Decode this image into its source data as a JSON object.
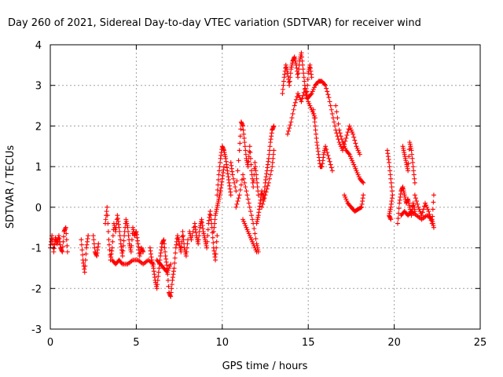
{
  "chart_data": {
    "type": "scatter",
    "title": "Day 260 of 2021, Sidereal Day-to-day VTEC variation (SDTVAR) for receiver wind",
    "xlabel": "GPS time / hours",
    "ylabel": "SDTVAR / TECUs",
    "xlim": [
      0,
      25
    ],
    "ylim": [
      -3,
      4
    ],
    "xticks": [
      0,
      5,
      10,
      15,
      20,
      25
    ],
    "yticks": [
      -3,
      -2,
      -1,
      0,
      1,
      2,
      3,
      4
    ],
    "grid": true,
    "marker": "+",
    "color": "#ff0000",
    "series": [
      {
        "name": "SDTVAR",
        "tracks": [
          [
            [
              0.0,
              -1.0
            ],
            [
              0.1,
              -0.7
            ],
            [
              0.2,
              -1.1
            ],
            [
              0.3,
              -0.75
            ],
            [
              0.4,
              -0.9
            ],
            [
              0.5,
              -0.7
            ],
            [
              0.6,
              -1.0
            ],
            [
              0.7,
              -1.1
            ],
            [
              0.8,
              -0.6
            ],
            [
              0.9,
              -0.5
            ],
            [
              1.0,
              -1.1
            ]
          ],
          [
            [
              1.8,
              -0.8
            ],
            [
              1.9,
              -1.3
            ],
            [
              2.0,
              -1.6
            ],
            [
              2.1,
              -1.0
            ],
            [
              2.2,
              -0.7
            ]
          ],
          [
            [
              2.5,
              -0.7
            ],
            [
              2.6,
              -1.1
            ],
            [
              2.7,
              -1.2
            ],
            [
              2.8,
              -0.9
            ]
          ],
          [
            [
              3.2,
              -0.4
            ],
            [
              3.3,
              0.0
            ],
            [
              3.4,
              -0.8
            ],
            [
              3.5,
              -1.3
            ],
            [
              3.6,
              -1.0
            ],
            [
              3.7,
              -0.4
            ],
            [
              3.8,
              -0.6
            ],
            [
              3.9,
              -0.2
            ],
            [
              4.0,
              -0.5
            ],
            [
              4.1,
              -0.9
            ],
            [
              4.2,
              -1.2
            ],
            [
              4.3,
              -0.7
            ],
            [
              4.4,
              -0.3
            ],
            [
              4.5,
              -0.5
            ],
            [
              4.6,
              -0.9
            ],
            [
              4.7,
              -1.1
            ],
            [
              4.8,
              -0.5
            ],
            [
              4.9,
              -0.7
            ],
            [
              5.0,
              -0.6
            ],
            [
              5.1,
              -0.9
            ],
            [
              5.2,
              -1.2
            ],
            [
              5.3,
              -1.0
            ],
            [
              5.4,
              -1.1
            ]
          ],
          [
            [
              3.6,
              -1.3
            ],
            [
              3.8,
              -1.4
            ],
            [
              4.0,
              -1.3
            ],
            [
              4.2,
              -1.4
            ],
            [
              4.5,
              -1.4
            ],
            [
              4.8,
              -1.3
            ],
            [
              5.1,
              -1.3
            ],
            [
              5.4,
              -1.4
            ],
            [
              5.7,
              -1.3
            ],
            [
              6.0,
              -1.4
            ]
          ],
          [
            [
              5.8,
              -1.0
            ],
            [
              5.9,
              -1.3
            ],
            [
              6.0,
              -1.5
            ],
            [
              6.1,
              -1.8
            ],
            [
              6.2,
              -2.0
            ],
            [
              6.3,
              -1.6
            ],
            [
              6.4,
              -1.2
            ],
            [
              6.5,
              -0.9
            ],
            [
              6.6,
              -0.8
            ],
            [
              6.7,
              -1.2
            ],
            [
              6.8,
              -1.5
            ],
            [
              6.9,
              -2.1
            ],
            [
              7.0,
              -2.2
            ],
            [
              7.1,
              -1.8
            ],
            [
              7.2,
              -1.5
            ],
            [
              7.3,
              -1.0
            ],
            [
              7.4,
              -0.7
            ],
            [
              7.5,
              -0.9
            ],
            [
              7.6,
              -1.1
            ],
            [
              7.7,
              -0.6
            ],
            [
              7.8,
              -1.0
            ],
            [
              7.9,
              -1.2
            ],
            [
              8.0,
              -0.8
            ]
          ],
          [
            [
              6.2,
              -1.3
            ],
            [
              6.4,
              -1.4
            ],
            [
              6.6,
              -1.5
            ],
            [
              6.8,
              -1.6
            ],
            [
              7.0,
              -1.4
            ]
          ],
          [
            [
              8.1,
              -0.6
            ],
            [
              8.2,
              -0.8
            ],
            [
              8.4,
              -0.4
            ],
            [
              8.5,
              -0.7
            ],
            [
              8.6,
              -0.9
            ],
            [
              8.7,
              -0.5
            ],
            [
              8.8,
              -0.3
            ],
            [
              8.9,
              -0.6
            ],
            [
              9.0,
              -0.8
            ],
            [
              9.1,
              -1.0
            ],
            [
              9.2,
              -0.4
            ],
            [
              9.3,
              -0.1
            ],
            [
              9.4,
              -0.5
            ],
            [
              9.5,
              -1.0
            ],
            [
              9.6,
              -1.3
            ],
            [
              9.7,
              -0.7
            ]
          ],
          [
            [
              9.7,
              0.3
            ],
            [
              9.8,
              0.8
            ],
            [
              9.9,
              1.2
            ],
            [
              10.0,
              1.5
            ],
            [
              10.1,
              1.4
            ],
            [
              10.2,
              1.2
            ],
            [
              10.3,
              0.9
            ],
            [
              10.4,
              0.6
            ],
            [
              10.5,
              0.3
            ]
          ],
          [
            [
              9.5,
              -0.6
            ],
            [
              9.6,
              -0.2
            ],
            [
              9.7,
              0.0
            ],
            [
              9.8,
              0.2
            ],
            [
              9.9,
              0.4
            ],
            [
              10.0,
              0.7
            ],
            [
              10.1,
              1.0
            ]
          ],
          [
            [
              10.5,
              1.1
            ],
            [
              10.6,
              0.8
            ],
            [
              10.8,
              0.4
            ],
            [
              11.0,
              1.4
            ],
            [
              11.1,
              2.1
            ],
            [
              11.2,
              2.0
            ],
            [
              11.3,
              1.6
            ],
            [
              11.4,
              1.2
            ],
            [
              11.5,
              1.0
            ],
            [
              11.6,
              1.5
            ],
            [
              11.7,
              0.9
            ],
            [
              11.8,
              0.5
            ],
            [
              11.9,
              1.1
            ],
            [
              12.0,
              0.7
            ],
            [
              12.1,
              0.3
            ]
          ],
          [
            [
              10.8,
              0.0
            ],
            [
              11.0,
              0.3
            ],
            [
              11.2,
              0.8
            ],
            [
              11.4,
              0.4
            ],
            [
              11.6,
              0.0
            ],
            [
              11.8,
              -0.4
            ],
            [
              12.0,
              -0.9
            ],
            [
              12.1,
              -1.1
            ]
          ],
          [
            [
              11.2,
              -0.3
            ],
            [
              11.4,
              -0.5
            ],
            [
              11.6,
              -0.7
            ],
            [
              11.8,
              -0.9
            ],
            [
              12.0,
              -1.1
            ]
          ],
          [
            [
              12.0,
              -0.4
            ],
            [
              12.1,
              -0.2
            ],
            [
              12.2,
              0.1
            ],
            [
              12.3,
              0.4
            ],
            [
              12.4,
              0.2
            ],
            [
              12.5,
              0.6
            ],
            [
              12.6,
              0.9
            ],
            [
              12.7,
              1.2
            ],
            [
              12.8,
              1.6
            ],
            [
              12.9,
              1.9
            ],
            [
              13.0,
              2.0
            ]
          ],
          [
            [
              12.3,
              0.0
            ],
            [
              12.5,
              0.3
            ],
            [
              12.7,
              0.6
            ],
            [
              12.9,
              1.0
            ],
            [
              13.0,
              1.4
            ]
          ],
          [
            [
              13.5,
              2.8
            ],
            [
              13.6,
              3.2
            ],
            [
              13.7,
              3.5
            ],
            [
              13.8,
              3.3
            ],
            [
              13.9,
              3.0
            ],
            [
              14.0,
              3.4
            ],
            [
              14.1,
              3.6
            ],
            [
              14.2,
              3.7
            ],
            [
              14.3,
              3.5
            ],
            [
              14.4,
              3.2
            ],
            [
              14.5,
              3.6
            ],
            [
              14.6,
              3.8
            ],
            [
              14.7,
              3.4
            ],
            [
              14.8,
              3.0
            ],
            [
              14.9,
              2.7
            ],
            [
              15.0,
              3.3
            ],
            [
              15.1,
              3.5
            ],
            [
              15.2,
              3.2
            ]
          ],
          [
            [
              13.8,
              1.8
            ],
            [
              14.0,
              2.1
            ],
            [
              14.2,
              2.5
            ],
            [
              14.4,
              2.8
            ],
            [
              14.6,
              2.6
            ],
            [
              14.8,
              2.9
            ],
            [
              15.0,
              2.6
            ],
            [
              15.2,
              2.4
            ],
            [
              15.4,
              2.2
            ]
          ],
          [
            [
              15.0,
              2.7
            ],
            [
              15.2,
              2.8
            ],
            [
              15.4,
              3.0
            ],
            [
              15.6,
              3.1
            ],
            [
              15.8,
              3.1
            ],
            [
              16.0,
              3.0
            ],
            [
              16.2,
              2.7
            ],
            [
              16.4,
              2.3
            ],
            [
              16.6,
              1.9
            ],
            [
              16.8,
              1.6
            ],
            [
              17.0,
              1.4
            ],
            [
              17.2,
              1.7
            ],
            [
              17.4,
              2.0
            ],
            [
              17.6,
              1.8
            ],
            [
              17.8,
              1.5
            ],
            [
              18.0,
              1.3
            ]
          ],
          [
            [
              15.3,
              2.4
            ],
            [
              15.4,
              2.0
            ],
            [
              15.5,
              1.6
            ],
            [
              15.6,
              1.3
            ],
            [
              15.7,
              1.0
            ],
            [
              15.8,
              1.0
            ],
            [
              15.9,
              1.3
            ],
            [
              16.0,
              1.5
            ],
            [
              16.2,
              1.2
            ],
            [
              16.4,
              0.9
            ]
          ],
          [
            [
              16.6,
              2.5
            ],
            [
              16.8,
              1.9
            ],
            [
              17.0,
              1.6
            ],
            [
              17.2,
              1.4
            ],
            [
              17.4,
              1.3
            ],
            [
              17.6,
              1.1
            ],
            [
              17.8,
              0.9
            ],
            [
              18.0,
              0.7
            ],
            [
              18.2,
              0.6
            ]
          ],
          [
            [
              17.1,
              0.3
            ],
            [
              17.3,
              0.1
            ],
            [
              17.5,
              0.0
            ],
            [
              17.7,
              -0.1
            ],
            [
              17.9,
              -0.05
            ],
            [
              18.1,
              0.0
            ],
            [
              18.2,
              0.3
            ]
          ],
          [
            [
              19.6,
              1.4
            ],
            [
              19.7,
              1.1
            ],
            [
              19.8,
              0.7
            ],
            [
              19.9,
              0.3
            ],
            [
              19.8,
              0.0
            ],
            [
              19.7,
              -0.2
            ],
            [
              19.8,
              -0.3
            ]
          ],
          [
            [
              20.2,
              -0.4
            ],
            [
              20.3,
              0.1
            ],
            [
              20.4,
              0.4
            ],
            [
              20.5,
              0.5
            ],
            [
              20.6,
              0.3
            ],
            [
              20.7,
              0.1
            ],
            [
              20.8,
              0.2
            ],
            [
              20.9,
              0.0
            ],
            [
              21.0,
              -0.2
            ],
            [
              21.1,
              0.1
            ],
            [
              21.2,
              -0.1
            ]
          ],
          [
            [
              20.5,
              1.5
            ],
            [
              20.6,
              1.3
            ],
            [
              20.7,
              1.1
            ],
            [
              20.8,
              0.9
            ],
            [
              20.9,
              1.6
            ],
            [
              21.0,
              1.4
            ],
            [
              21.1,
              1.0
            ],
            [
              21.2,
              0.6
            ]
          ],
          [
            [
              21.2,
              0.3
            ],
            [
              21.4,
              0.0
            ],
            [
              21.6,
              -0.2
            ],
            [
              21.8,
              0.1
            ],
            [
              22.0,
              -0.1
            ],
            [
              22.2,
              -0.4
            ],
            [
              22.3,
              0.3
            ]
          ],
          [
            [
              20.4,
              -0.2
            ],
            [
              20.6,
              -0.1
            ],
            [
              20.8,
              -0.2
            ],
            [
              21.0,
              -0.1
            ],
            [
              21.3,
              -0.2
            ],
            [
              21.6,
              -0.3
            ],
            [
              21.9,
              -0.2
            ],
            [
              22.2,
              -0.3
            ],
            [
              22.3,
              -0.5
            ]
          ]
        ]
      }
    ]
  }
}
